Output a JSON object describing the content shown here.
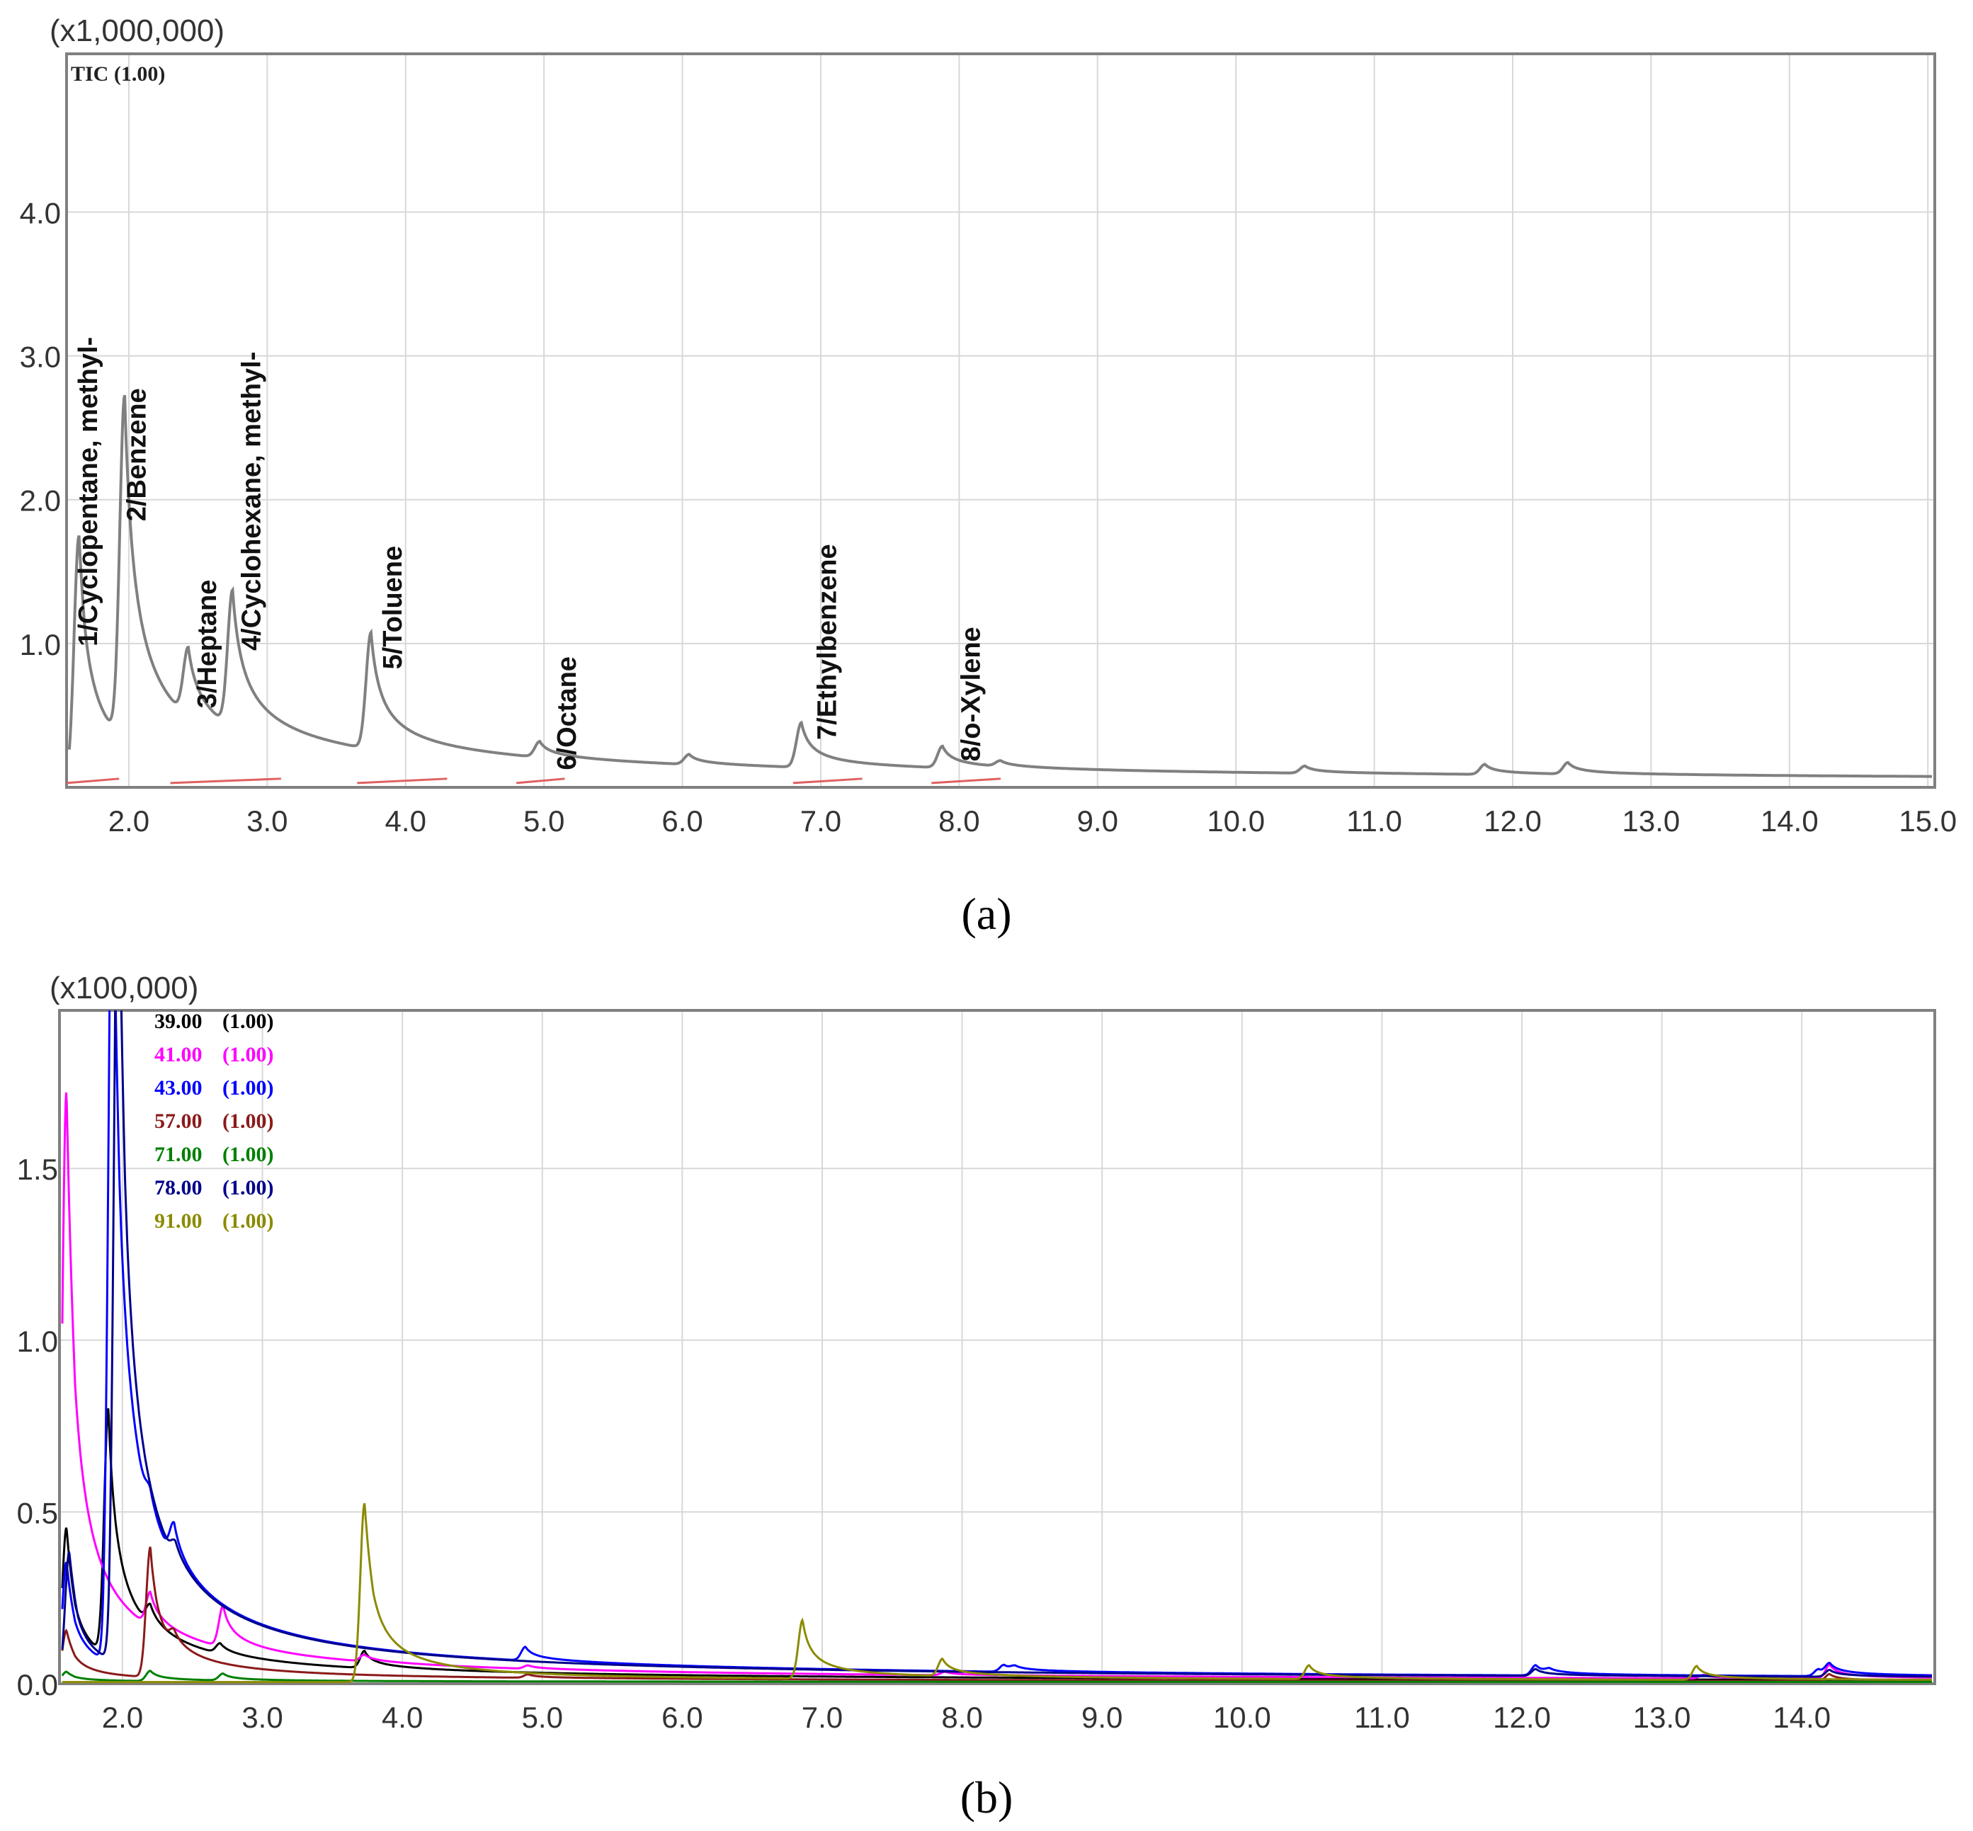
{
  "figure": {
    "caption_a": "(a)",
    "caption_b": "(b)"
  },
  "chart_data": [
    {
      "panel": "a",
      "type": "line",
      "multiplier_label": "(x1,000,000)",
      "trace_label": "TIC (1.00)",
      "xlim": [
        1.55,
        15.05
      ],
      "ylim": [
        0,
        5.1
      ],
      "x_ticks": [
        "2.0",
        "3.0",
        "4.0",
        "5.0",
        "6.0",
        "7.0",
        "8.0",
        "9.0",
        "10.0",
        "11.0",
        "12.0",
        "13.0",
        "14.0",
        "15.0"
      ],
      "y_ticks": [
        "1.0",
        "2.0",
        "3.0",
        "4.0"
      ],
      "grid": true,
      "colors": {
        "tic": "#808080",
        "baseline": "#e06060"
      },
      "peaks": [
        {
          "label": "1/Cyclopentane, methyl-",
          "x": 1.64,
          "y": 1.72
        },
        {
          "label": "2/Benzene",
          "x": 1.97,
          "y": 2.39
        },
        {
          "label": "3/Heptane",
          "x": 2.43,
          "y": 0.48
        },
        {
          "label": "4/Cyclohexane, methyl-",
          "x": 2.75,
          "y": 0.95
        },
        {
          "label": "5/Toluene",
          "x": 3.75,
          "y": 0.81
        },
        {
          "label": "6/Octane",
          "x": 4.97,
          "y": 0.11
        },
        {
          "label": "7/Ethylbenzene",
          "x": 6.86,
          "y": 0.31
        },
        {
          "label": "8/o-Xylene",
          "x": 7.88,
          "y": 0.15
        }
      ]
    },
    {
      "panel": "b",
      "type": "line",
      "multiplier_label": "(x100,000)",
      "xlim": [
        1.55,
        14.95
      ],
      "ylim": [
        0,
        1.96
      ],
      "x_ticks": [
        "2.0",
        "3.0",
        "4.0",
        "5.0",
        "6.0",
        "7.0",
        "8.0",
        "9.0",
        "10.0",
        "11.0",
        "12.0",
        "13.0",
        "14.0"
      ],
      "y_ticks": [
        "0.0",
        "0.5",
        "1.0",
        "1.5"
      ],
      "grid": true,
      "series": [
        {
          "name": "39.00",
          "factor": "(1.00)",
          "color": "#000000",
          "peaks": [
            [
              1.6,
              0.45
            ],
            [
              1.9,
              0.72
            ],
            [
              2.2,
              0.06
            ],
            [
              2.7,
              0.03
            ],
            [
              3.73,
              0.05
            ]
          ]
        },
        {
          "name": "41.00",
          "factor": "(1.00)",
          "color": "#ff00ff",
          "peaks": [
            [
              1.6,
              1.72
            ],
            [
              2.2,
              0.1
            ],
            [
              2.72,
              0.12
            ],
            [
              3.73,
              0.02
            ],
            [
              4.9,
              0.01
            ],
            [
              7.88,
              0.01
            ],
            [
              13.3,
              0.01
            ],
            [
              14.2,
              0.04
            ]
          ]
        },
        {
          "name": "43.00",
          "factor": "(1.00)",
          "color": "#0000ff",
          "peaks": [
            [
              1.6,
              0.35
            ],
            [
              1.93,
              2.5
            ],
            [
              2.2,
              0.06
            ],
            [
              2.37,
              0.11
            ],
            [
              4.88,
              0.04
            ],
            [
              8.3,
              0.02
            ],
            [
              8.38,
              0.01
            ],
            [
              12.1,
              0.03
            ],
            [
              12.2,
              0.01
            ],
            [
              14.12,
              0.02
            ],
            [
              14.2,
              0.03
            ]
          ]
        },
        {
          "name": "57.00",
          "factor": "(1.00)",
          "color": "#8b1a1a",
          "peaks": [
            [
              1.6,
              0.15
            ],
            [
              2.2,
              0.38
            ],
            [
              2.37,
              0.04
            ],
            [
              4.9,
              0.01
            ],
            [
              14.2,
              0.02
            ]
          ]
        },
        {
          "name": "71.00",
          "factor": "(1.00)",
          "color": "#008000",
          "peaks": [
            [
              1.6,
              0.03
            ],
            [
              2.2,
              0.03
            ],
            [
              2.72,
              0.02
            ]
          ]
        },
        {
          "name": "78.00",
          "factor": "(1.00)",
          "color": "#00008b",
          "peaks": [
            [
              1.62,
              0.38
            ],
            [
              1.97,
              2.5
            ],
            [
              2.38,
              0.05
            ],
            [
              12.1,
              0.02
            ],
            [
              14.2,
              0.02
            ]
          ]
        },
        {
          "name": "91.00",
          "factor": "(1.00)",
          "color": "#8b8b00",
          "peaks": [
            [
              3.73,
              0.52
            ],
            [
              6.86,
              0.17
            ],
            [
              7.86,
              0.05
            ],
            [
              10.48,
              0.04
            ],
            [
              13.25,
              0.04
            ]
          ]
        }
      ]
    }
  ]
}
